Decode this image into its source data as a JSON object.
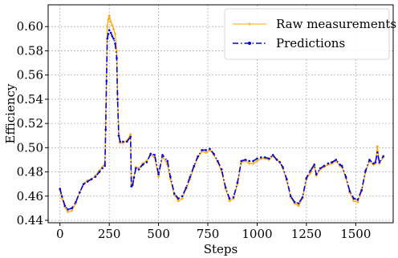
{
  "chart_data": {
    "type": "line",
    "title": "",
    "xlabel": "Steps",
    "ylabel": "Efficiency",
    "xlim": [
      -60,
      1690
    ],
    "ylim": [
      0.438,
      0.618
    ],
    "x_ticks": [
      0,
      250,
      500,
      750,
      1000,
      1250,
      1500
    ],
    "y_ticks": [
      0.44,
      0.46,
      0.48,
      0.5,
      0.52,
      0.54,
      0.56,
      0.58,
      0.6
    ],
    "x_tick_labels": [
      "0",
      "250",
      "500",
      "750",
      "1000",
      "1250",
      "1500"
    ],
    "y_tick_labels": [
      "0.44",
      "0.46",
      "0.48",
      "0.50",
      "0.52",
      "0.54",
      "0.56",
      "0.58",
      "0.60"
    ],
    "grid": true,
    "legend_position": "top-right",
    "series": [
      {
        "name": "Raw measurements",
        "color": "#ffa500",
        "style": "solid",
        "marker": "star",
        "x": [
          0,
          10,
          25,
          40,
          60,
          80,
          100,
          120,
          140,
          160,
          180,
          200,
          215,
          228,
          232,
          236,
          240,
          245,
          250,
          258,
          265,
          272,
          280,
          288,
          292,
          298,
          305,
          320,
          340,
          358,
          362,
          368,
          375,
          385,
          400,
          420,
          440,
          460,
          480,
          500,
          520,
          545,
          560,
          580,
          600,
          620,
          640,
          660,
          680,
          700,
          720,
          740,
          760,
          780,
          800,
          820,
          840,
          860,
          880,
          900,
          920,
          940,
          960,
          980,
          1000,
          1020,
          1040,
          1060,
          1080,
          1100,
          1115,
          1130,
          1150,
          1170,
          1190,
          1210,
          1230,
          1250,
          1270,
          1290,
          1300,
          1320,
          1340,
          1360,
          1380,
          1400,
          1420,
          1430,
          1450,
          1470,
          1490,
          1510,
          1530,
          1550,
          1570,
          1590,
          1600,
          1610,
          1620,
          1640
        ],
        "y": [
          0.465,
          0.458,
          0.451,
          0.447,
          0.448,
          0.454,
          0.463,
          0.47,
          0.473,
          0.474,
          0.477,
          0.481,
          0.484,
          0.487,
          0.52,
          0.56,
          0.6,
          0.606,
          0.609,
          0.604,
          0.601,
          0.598,
          0.594,
          0.58,
          0.545,
          0.51,
          0.504,
          0.504,
          0.506,
          0.511,
          0.47,
          0.47,
          0.476,
          0.484,
          0.483,
          0.487,
          0.489,
          0.494,
          0.492,
          0.476,
          0.493,
          0.486,
          0.474,
          0.461,
          0.456,
          0.458,
          0.466,
          0.474,
          0.484,
          0.492,
          0.497,
          0.496,
          0.498,
          0.494,
          0.488,
          0.48,
          0.466,
          0.456,
          0.458,
          0.47,
          0.488,
          0.489,
          0.487,
          0.487,
          0.489,
          0.491,
          0.491,
          0.49,
          0.493,
          0.49,
          0.488,
          0.483,
          0.473,
          0.459,
          0.454,
          0.452,
          0.458,
          0.474,
          0.479,
          0.485,
          0.477,
          0.482,
          0.484,
          0.486,
          0.487,
          0.489,
          0.485,
          0.484,
          0.475,
          0.463,
          0.456,
          0.455,
          0.464,
          0.48,
          0.489,
          0.486,
          0.487,
          0.501,
          0.487,
          0.492
        ]
      },
      {
        "name": "Predictions",
        "color": "#0000dd",
        "style": "dashdot",
        "marker": "dot",
        "x": [
          0,
          10,
          25,
          40,
          60,
          80,
          100,
          120,
          140,
          160,
          180,
          200,
          215,
          228,
          232,
          236,
          240,
          245,
          250,
          258,
          265,
          272,
          280,
          288,
          292,
          298,
          305,
          320,
          340,
          358,
          362,
          368,
          375,
          385,
          400,
          420,
          440,
          460,
          480,
          500,
          520,
          545,
          560,
          580,
          600,
          620,
          640,
          660,
          680,
          700,
          720,
          740,
          760,
          780,
          800,
          820,
          840,
          860,
          880,
          900,
          920,
          940,
          960,
          980,
          1000,
          1020,
          1040,
          1060,
          1080,
          1100,
          1115,
          1130,
          1150,
          1170,
          1190,
          1210,
          1230,
          1250,
          1270,
          1290,
          1300,
          1320,
          1340,
          1360,
          1380,
          1400,
          1420,
          1430,
          1450,
          1470,
          1490,
          1510,
          1530,
          1550,
          1570,
          1590,
          1600,
          1610,
          1620,
          1640
        ],
        "y": [
          0.466,
          0.46,
          0.452,
          0.449,
          0.45,
          0.455,
          0.463,
          0.47,
          0.472,
          0.474,
          0.476,
          0.48,
          0.483,
          0.485,
          0.515,
          0.555,
          0.59,
          0.594,
          0.597,
          0.595,
          0.592,
          0.59,
          0.586,
          0.574,
          0.54,
          0.51,
          0.505,
          0.505,
          0.505,
          0.509,
          0.468,
          0.469,
          0.475,
          0.483,
          0.482,
          0.486,
          0.488,
          0.495,
          0.494,
          0.478,
          0.494,
          0.489,
          0.476,
          0.462,
          0.458,
          0.46,
          0.467,
          0.476,
          0.485,
          0.493,
          0.498,
          0.498,
          0.499,
          0.495,
          0.489,
          0.482,
          0.467,
          0.458,
          0.459,
          0.471,
          0.489,
          0.49,
          0.489,
          0.489,
          0.491,
          0.492,
          0.492,
          0.491,
          0.494,
          0.49,
          0.488,
          0.484,
          0.474,
          0.46,
          0.455,
          0.454,
          0.459,
          0.475,
          0.481,
          0.486,
          0.478,
          0.483,
          0.485,
          0.487,
          0.488,
          0.49,
          0.486,
          0.485,
          0.476,
          0.464,
          0.458,
          0.457,
          0.465,
          0.481,
          0.49,
          0.487,
          0.488,
          0.496,
          0.488,
          0.493
        ]
      }
    ]
  }
}
